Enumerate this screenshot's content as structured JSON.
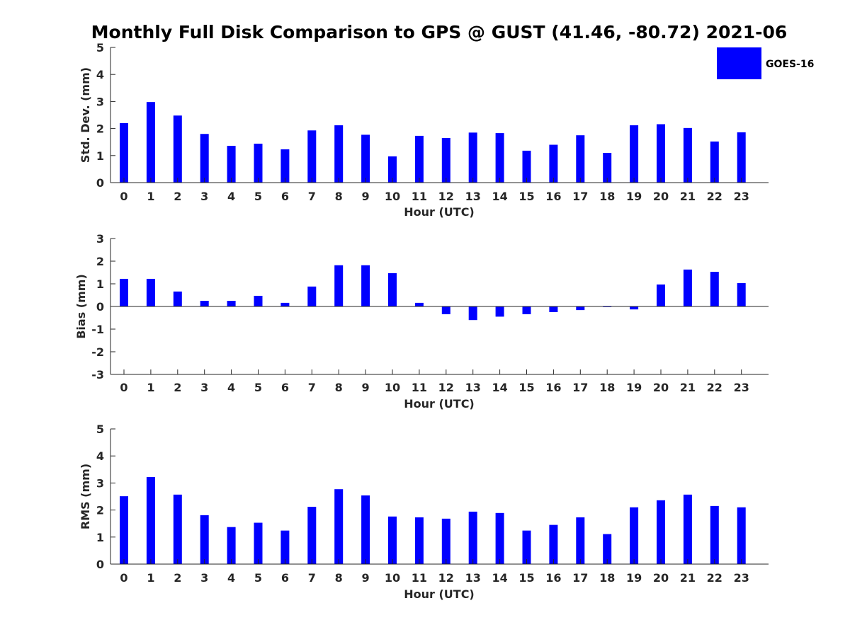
{
  "figure": {
    "title": "Monthly Full Disk Comparison to GPS @ GUST (41.46, -80.72) 2021-06",
    "legend": {
      "label": "GOES-16",
      "color": "#0000ff",
      "position": "top-right"
    }
  },
  "chart_data": [
    {
      "type": "bar",
      "xlabel": "Hour (UTC)",
      "ylabel": "Std. Dev. (mm)",
      "ylim": [
        0,
        5
      ],
      "yticks": [
        0,
        1,
        2,
        3,
        4,
        5
      ],
      "categories": [
        "0",
        "1",
        "2",
        "3",
        "4",
        "5",
        "6",
        "7",
        "8",
        "9",
        "10",
        "11",
        "12",
        "13",
        "14",
        "15",
        "16",
        "17",
        "18",
        "19",
        "20",
        "21",
        "22",
        "23"
      ],
      "series": [
        {
          "name": "GOES-16",
          "color": "#0000ff",
          "values": [
            2.2,
            2.98,
            2.48,
            1.8,
            1.36,
            1.44,
            1.23,
            1.93,
            2.12,
            1.77,
            0.97,
            1.73,
            1.65,
            1.85,
            1.83,
            1.18,
            1.4,
            1.75,
            1.1,
            2.12,
            2.16,
            2.02,
            1.52,
            1.86
          ]
        }
      ],
      "grid": false
    },
    {
      "type": "bar",
      "xlabel": "Hour (UTC)",
      "ylabel": "Bias (mm)",
      "ylim": [
        -3,
        3
      ],
      "yticks": [
        -3,
        -2,
        -1,
        0,
        1,
        2,
        3
      ],
      "categories": [
        "0",
        "1",
        "2",
        "3",
        "4",
        "5",
        "6",
        "7",
        "8",
        "9",
        "10",
        "11",
        "12",
        "13",
        "14",
        "15",
        "16",
        "17",
        "18",
        "19",
        "20",
        "21",
        "22",
        "23"
      ],
      "series": [
        {
          "name": "GOES-16",
          "color": "#0000ff",
          "values": [
            1.22,
            1.22,
            0.66,
            0.25,
            0.25,
            0.47,
            0.16,
            0.88,
            1.82,
            1.82,
            1.47,
            0.16,
            -0.34,
            -0.6,
            -0.45,
            -0.34,
            -0.25,
            -0.16,
            -0.03,
            -0.13,
            0.97,
            1.63,
            1.53,
            1.03
          ]
        }
      ],
      "grid": false
    },
    {
      "type": "bar",
      "xlabel": "Hour (UTC)",
      "ylabel": "RMS (mm)",
      "ylim": [
        0,
        5
      ],
      "yticks": [
        0,
        1,
        2,
        3,
        4,
        5
      ],
      "categories": [
        "0",
        "1",
        "2",
        "3",
        "4",
        "5",
        "6",
        "7",
        "8",
        "9",
        "10",
        "11",
        "12",
        "13",
        "14",
        "15",
        "16",
        "17",
        "18",
        "19",
        "20",
        "21",
        "22",
        "23"
      ],
      "series": [
        {
          "name": "GOES-16",
          "color": "#0000ff",
          "values": [
            2.51,
            3.22,
            2.57,
            1.81,
            1.37,
            1.53,
            1.24,
            2.12,
            2.77,
            2.54,
            1.76,
            1.73,
            1.68,
            1.94,
            1.89,
            1.24,
            1.45,
            1.73,
            1.11,
            2.1,
            2.36,
            2.57,
            2.15,
            2.1
          ]
        }
      ],
      "grid": false
    }
  ]
}
